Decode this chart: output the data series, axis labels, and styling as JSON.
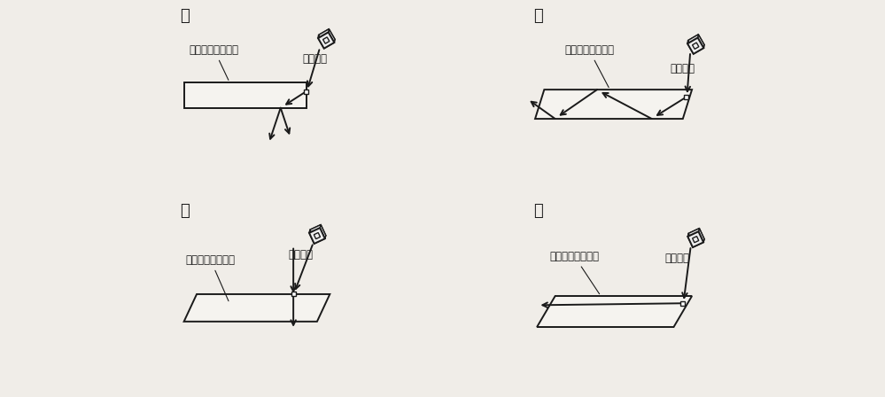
{
  "bg_color": "#f0ede8",
  "panels": [
    "ア",
    "イ",
    "ウ",
    "エ"
  ],
  "label_glass": "ガラス製の四角柱",
  "label_light": "光源装置",
  "text_color": "#1a1a1a",
  "line_color": "#1a1a1a",
  "lw": 1.4
}
